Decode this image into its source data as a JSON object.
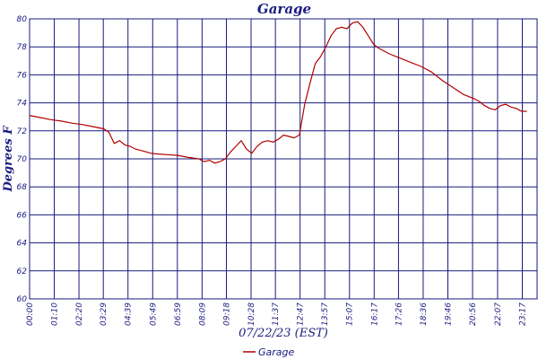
{
  "chart_data": {
    "type": "line",
    "title": "Garage",
    "xlabel": "07/22/23 (EST)",
    "ylabel": "Degrees F",
    "ylim": [
      60,
      80
    ],
    "yticks": [
      60,
      62,
      64,
      66,
      68,
      70,
      72,
      74,
      76,
      78,
      80
    ],
    "xticks": [
      "00:00",
      "01:10",
      "02:20",
      "03:29",
      "04:39",
      "05:49",
      "06:59",
      "08:09",
      "09:18",
      "10:28",
      "11:37",
      "12:47",
      "13:57",
      "15:07",
      "16:17",
      "17:26",
      "18:36",
      "19:46",
      "20:56",
      "22:07",
      "23:17"
    ],
    "grid": true,
    "legend_position": "bottom-center",
    "line_color": "#b00000",
    "grid_color": "#1a1a80",
    "series": [
      {
        "name": "Garage",
        "x": [
          "00:00",
          "00:30",
          "01:00",
          "01:30",
          "02:00",
          "02:30",
          "03:00",
          "03:30",
          "03:45",
          "04:00",
          "04:15",
          "04:30",
          "04:45",
          "05:00",
          "05:15",
          "05:30",
          "05:45",
          "06:00",
          "06:30",
          "07:00",
          "07:30",
          "08:00",
          "08:15",
          "08:30",
          "08:45",
          "09:00",
          "09:15",
          "09:30",
          "09:45",
          "10:00",
          "10:15",
          "10:30",
          "10:45",
          "11:00",
          "11:15",
          "11:30",
          "11:45",
          "12:00",
          "12:15",
          "12:30",
          "12:45",
          "13:00",
          "13:15",
          "13:30",
          "13:45",
          "14:00",
          "14:15",
          "14:30",
          "14:45",
          "15:00",
          "15:15",
          "15:30",
          "15:45",
          "16:00",
          "16:15",
          "16:30",
          "17:00",
          "17:30",
          "18:00",
          "18:30",
          "19:00",
          "19:30",
          "20:00",
          "20:30",
          "21:00",
          "21:15",
          "21:30",
          "21:45",
          "22:00",
          "22:15",
          "22:30",
          "22:45",
          "23:00",
          "23:15",
          "23:30"
        ],
        "values": [
          73.1,
          72.95,
          72.8,
          72.7,
          72.55,
          72.45,
          72.3,
          72.15,
          71.9,
          71.1,
          71.3,
          71.0,
          70.9,
          70.7,
          70.6,
          70.5,
          70.4,
          70.35,
          70.3,
          70.25,
          70.1,
          70.0,
          69.8,
          69.9,
          69.7,
          69.8,
          70.0,
          70.5,
          70.9,
          71.3,
          70.7,
          70.4,
          70.9,
          71.2,
          71.3,
          71.2,
          71.4,
          71.7,
          71.6,
          71.5,
          71.7,
          73.9,
          75.4,
          76.8,
          77.3,
          78.0,
          78.8,
          79.3,
          79.4,
          79.3,
          79.7,
          79.8,
          79.4,
          78.8,
          78.2,
          77.9,
          77.5,
          77.2,
          76.9,
          76.6,
          76.2,
          75.6,
          75.1,
          74.6,
          74.3,
          74.1,
          73.8,
          73.6,
          73.5,
          73.8,
          73.9,
          73.7,
          73.6,
          73.4,
          73.4
        ]
      }
    ]
  }
}
